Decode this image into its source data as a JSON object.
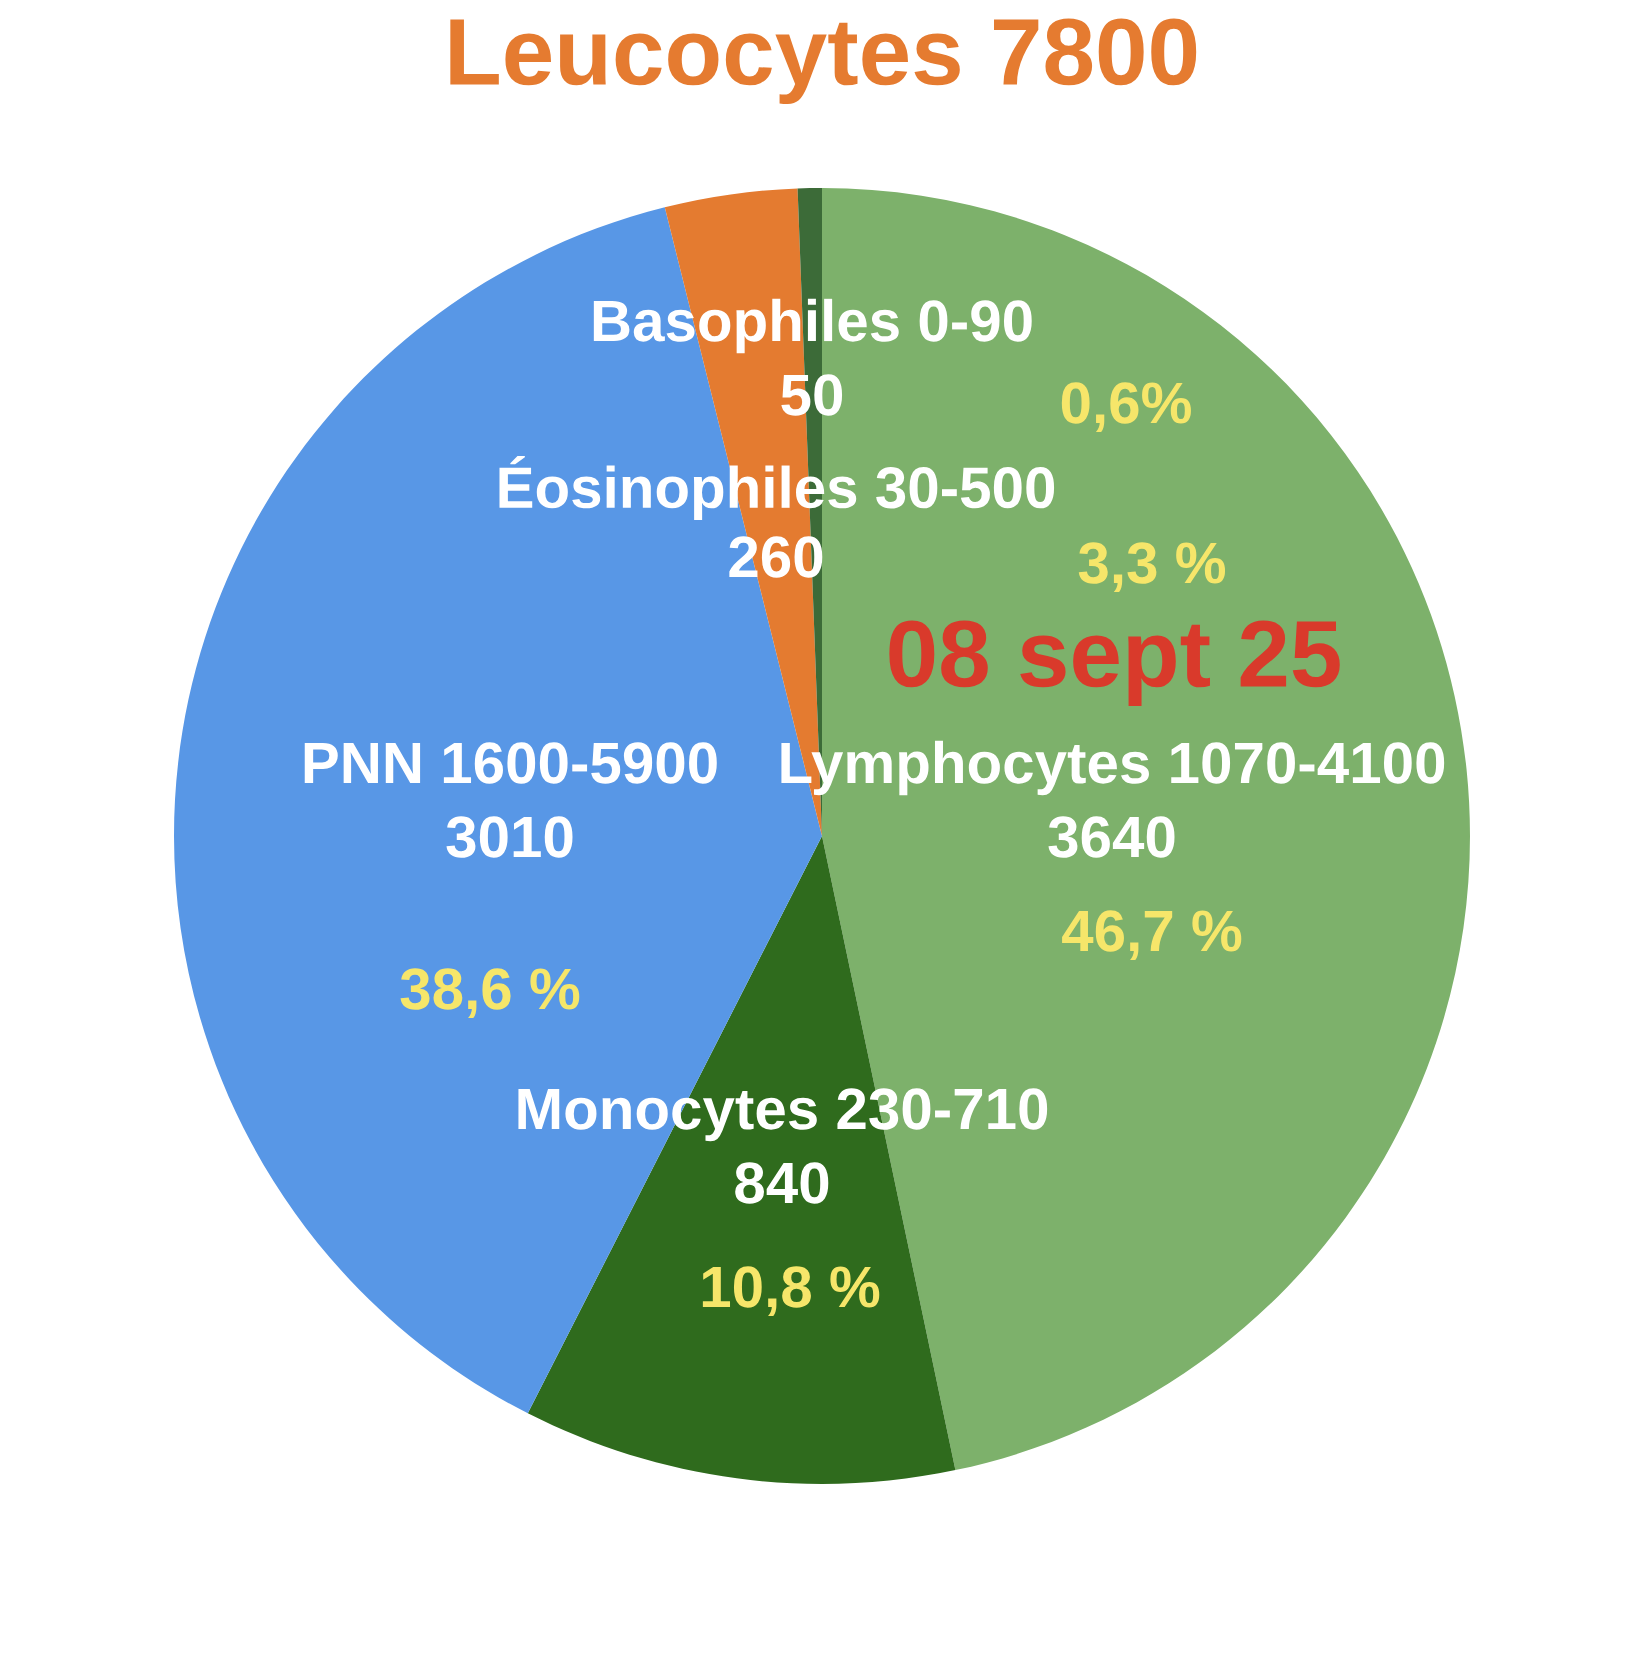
{
  "chart_data": {
    "type": "pie",
    "title": "Leucocytes 7800",
    "categories": [
      "Lymphocytes 1070-4100\n3640",
      "Monocytes 230-710\n840",
      "PNN 1600-5900\n3010",
      "Éosinophiles 30-500\n260",
      "Basophiles 0-90\n50"
    ],
    "values": [
      46.7,
      10.8,
      38.6,
      3.3,
      0.6
    ],
    "colors": [
      "#7db16b",
      "#2f6b1d",
      "#5897e6",
      "#e47b30",
      "#3c6b38"
    ],
    "value_labels": [
      "46,7 %",
      "10,8 %",
      "38,6 %",
      "3,3 %",
      "0,6%"
    ],
    "annotations": [
      "08 sept 25"
    ]
  }
}
